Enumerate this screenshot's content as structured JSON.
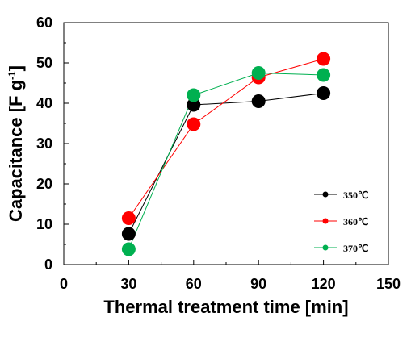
{
  "chart_data": {
    "type": "line",
    "title": "",
    "xlabel": "Thermal treatment time [min]",
    "ylabel_main": "Capacitance [F g",
    "ylabel_sup": "-1",
    "ylabel_end": "]",
    "xlim": [
      0,
      150
    ],
    "ylim": [
      0,
      60
    ],
    "x_ticks": [
      0,
      30,
      60,
      90,
      120,
      150
    ],
    "y_ticks": [
      0,
      10,
      20,
      30,
      40,
      50,
      60
    ],
    "x_tick_labels": [
      "0",
      "30",
      "60",
      "90",
      "120",
      "150"
    ],
    "y_tick_labels": [
      "0",
      "10",
      "20",
      "30",
      "40",
      "50",
      "60"
    ],
    "grid": false,
    "legend_position": "bottom-right",
    "x": [
      30,
      60,
      90,
      120
    ],
    "series": [
      {
        "name": "350℃",
        "color": "#000000",
        "values": [
          7.6,
          39.6,
          40.5,
          42.5
        ]
      },
      {
        "name": "360℃",
        "color": "#ff0000",
        "values": [
          11.5,
          34.8,
          46.4,
          51.0
        ]
      },
      {
        "name": "370℃",
        "color": "#00b050",
        "values": [
          3.8,
          42.0,
          47.5,
          47.0
        ]
      }
    ]
  }
}
